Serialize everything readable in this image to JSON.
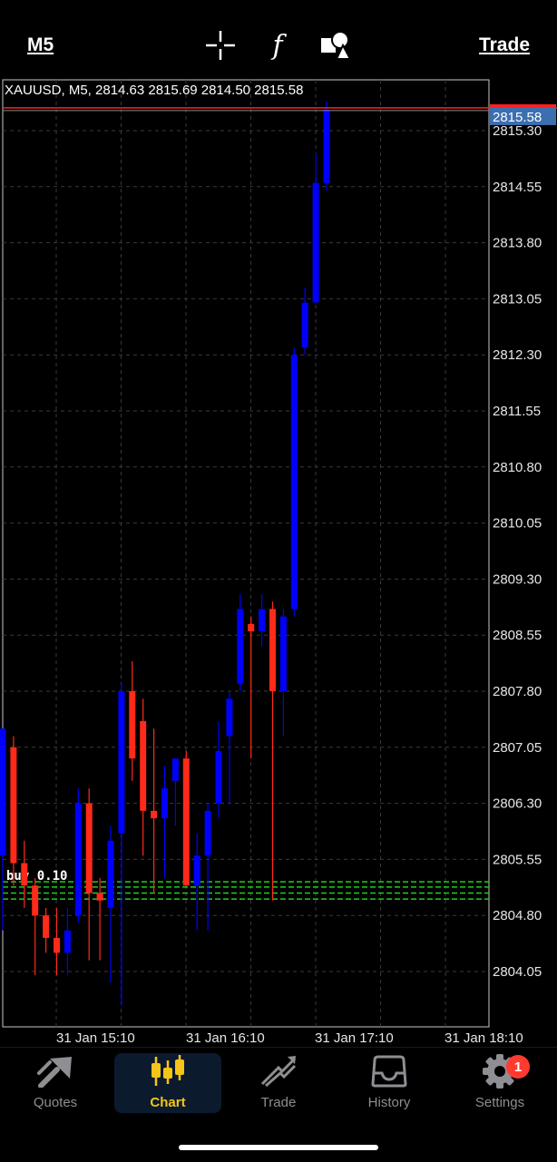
{
  "toolbar": {
    "timeframe": "M5",
    "trade_label": "Trade",
    "icons": [
      "crosshair-icon",
      "function-icon",
      "objects-icon"
    ],
    "function_glyph": "f"
  },
  "chart": {
    "info_line": "XAUUSD, M5, 2814.63 2815.69 2814.50 2815.58",
    "current_price": "2815.58",
    "price_labels": [
      "2815.30",
      "2814.55",
      "2813.80",
      "2813.05",
      "2812.30",
      "2811.55",
      "2810.80",
      "2810.05",
      "2809.30",
      "2808.55",
      "2807.80",
      "2807.05",
      "2806.30",
      "2805.55",
      "2804.80",
      "2804.05"
    ],
    "time_labels": [
      "31 Jan 15:10",
      "31 Jan 16:10",
      "31 Jan 17:10",
      "31 Jan 18:10"
    ],
    "trade_label": "buy 0.10",
    "colors": {
      "bull": "#0000ff",
      "bear": "#ff2a1a",
      "grid": "#3a3a3a",
      "trade": "#22cc22",
      "price_line": "#ff2020",
      "price_box": "#3c6fb0"
    }
  },
  "chart_data": {
    "type": "candlestick",
    "symbol": "XAUUSD",
    "timeframe": "M5",
    "ylim": [
      2803.7,
      2816.0
    ],
    "candles": [
      {
        "o": 2805.6,
        "h": 2807.3,
        "l": 2804.6,
        "c": 2807.3
      },
      {
        "o": 2807.05,
        "h": 2807.2,
        "l": 2805.2,
        "c": 2805.5
      },
      {
        "o": 2805.5,
        "h": 2805.8,
        "l": 2804.9,
        "c": 2805.2
      },
      {
        "o": 2805.2,
        "h": 2805.3,
        "l": 2804.0,
        "c": 2804.8
      },
      {
        "o": 2804.8,
        "h": 2804.9,
        "l": 2804.3,
        "c": 2804.5
      },
      {
        "o": 2804.5,
        "h": 2804.9,
        "l": 2804.0,
        "c": 2804.3
      },
      {
        "o": 2804.3,
        "h": 2804.9,
        "l": 2804.0,
        "c": 2804.6
      },
      {
        "o": 2804.8,
        "h": 2806.5,
        "l": 2804.7,
        "c": 2806.3
      },
      {
        "o": 2806.3,
        "h": 2806.5,
        "l": 2804.2,
        "c": 2805.1
      },
      {
        "o": 2805.1,
        "h": 2805.3,
        "l": 2804.2,
        "c": 2805.0
      },
      {
        "o": 2804.9,
        "h": 2806.0,
        "l": 2803.9,
        "c": 2805.8
      },
      {
        "o": 2805.9,
        "h": 2807.9,
        "l": 2803.6,
        "c": 2807.8
      },
      {
        "o": 2807.8,
        "h": 2808.2,
        "l": 2806.6,
        "c": 2806.9
      },
      {
        "o": 2807.4,
        "h": 2807.7,
        "l": 2805.6,
        "c": 2806.2
      },
      {
        "o": 2806.2,
        "h": 2807.3,
        "l": 2805.1,
        "c": 2806.1
      },
      {
        "o": 2806.1,
        "h": 2806.8,
        "l": 2805.3,
        "c": 2806.5
      },
      {
        "o": 2806.6,
        "h": 2806.9,
        "l": 2806.0,
        "c": 2806.9
      },
      {
        "o": 2806.9,
        "h": 2807.0,
        "l": 2805.2,
        "c": 2805.2
      },
      {
        "o": 2805.2,
        "h": 2805.9,
        "l": 2804.6,
        "c": 2805.6
      },
      {
        "o": 2805.6,
        "h": 2806.3,
        "l": 2804.6,
        "c": 2806.2
      },
      {
        "o": 2806.3,
        "h": 2807.4,
        "l": 2806.1,
        "c": 2807.0
      },
      {
        "o": 2807.2,
        "h": 2807.8,
        "l": 2806.3,
        "c": 2807.7
      },
      {
        "o": 2807.9,
        "h": 2809.1,
        "l": 2807.8,
        "c": 2808.9
      },
      {
        "o": 2808.7,
        "h": 2808.8,
        "l": 2806.9,
        "c": 2808.6
      },
      {
        "o": 2808.6,
        "h": 2809.1,
        "l": 2808.4,
        "c": 2808.9
      },
      {
        "o": 2808.9,
        "h": 2809.0,
        "l": 2805.0,
        "c": 2807.8
      },
      {
        "o": 2807.8,
        "h": 2808.9,
        "l": 2807.2,
        "c": 2808.8
      },
      {
        "o": 2808.9,
        "h": 2812.4,
        "l": 2808.8,
        "c": 2812.3
      },
      {
        "o": 2812.4,
        "h": 2813.2,
        "l": 2812.3,
        "c": 2813.0
      },
      {
        "o": 2813.0,
        "h": 2815.0,
        "l": 2813.0,
        "c": 2814.6
      },
      {
        "o": 2814.6,
        "h": 2815.7,
        "l": 2814.5,
        "c": 2815.58
      }
    ],
    "trade_lines": [
      2805.25,
      2805.18,
      2805.1,
      2805.02
    ],
    "current_price": 2815.58,
    "price_ticks": [
      2815.3,
      2814.55,
      2813.8,
      2813.05,
      2812.3,
      2811.55,
      2810.8,
      2810.05,
      2809.3,
      2808.55,
      2807.8,
      2807.05,
      2806.3,
      2805.55,
      2804.8,
      2804.05
    ],
    "grid": true
  },
  "nav": [
    {
      "label": "Quotes",
      "icon": "quotes-icon",
      "active": false
    },
    {
      "label": "Chart",
      "icon": "chart-icon",
      "active": true
    },
    {
      "label": "Trade",
      "icon": "trade-icon",
      "active": false
    },
    {
      "label": "History",
      "icon": "history-icon",
      "active": false
    },
    {
      "label": "Settings",
      "icon": "settings-icon",
      "active": false,
      "badge": "1"
    }
  ]
}
